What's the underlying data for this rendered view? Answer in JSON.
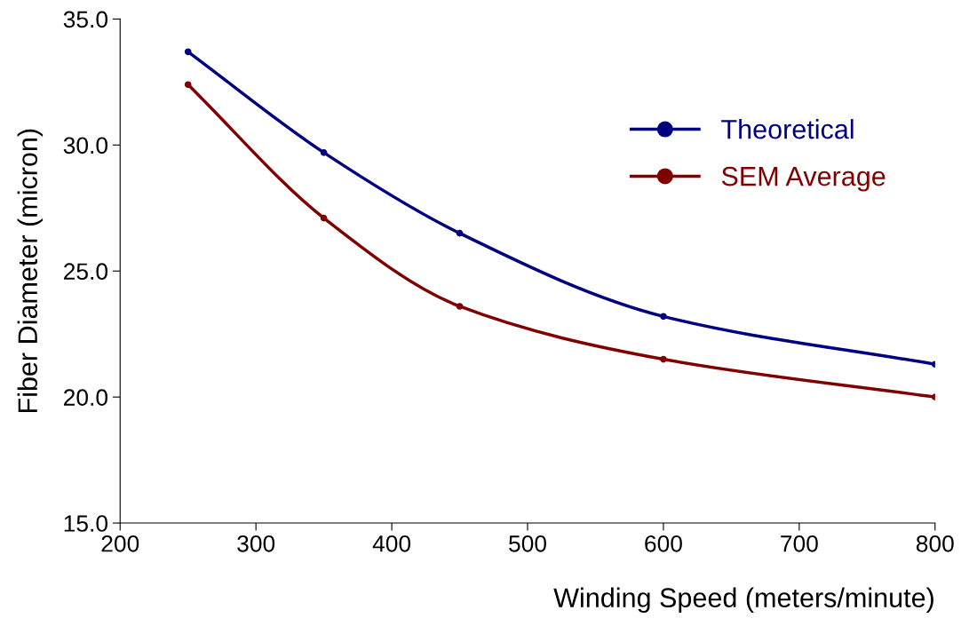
{
  "chart_data": {
    "type": "line",
    "xlabel": "Winding Speed (meters/minute)",
    "ylabel": "Fiber Diameter (micron)",
    "x": [
      250,
      350,
      450,
      600,
      800
    ],
    "series": [
      {
        "name": "Theoretical",
        "color": "#000080",
        "values": [
          33.7,
          29.7,
          26.5,
          23.2,
          21.3
        ]
      },
      {
        "name": "SEM Average",
        "color": "#800000",
        "values": [
          32.4,
          27.1,
          23.6,
          21.5,
          20.0
        ]
      }
    ],
    "xlim": [
      200,
      800
    ],
    "xticks": [
      200,
      300,
      400,
      500,
      600,
      700,
      800
    ],
    "ylim": [
      15,
      35
    ],
    "yticks": [
      {
        "value": 15,
        "label": "15.0"
      },
      {
        "value": 20,
        "label": "20.0"
      },
      {
        "value": 25,
        "label": "25.0"
      },
      {
        "value": 30,
        "label": "30.0"
      },
      {
        "value": 35,
        "label": "35.0"
      }
    ],
    "grid": false,
    "legend": "top right",
    "marker": "circle",
    "line_style": "solid"
  }
}
